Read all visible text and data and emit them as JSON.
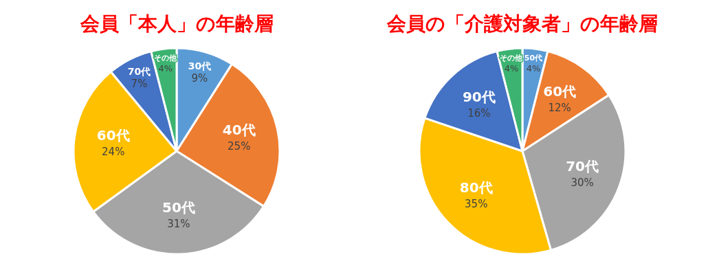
{
  "chart_data": [
    {
      "type": "pie",
      "title": "会員「本人」の年齢層",
      "categories": [
        "30代",
        "40代",
        "50代",
        "60代",
        "70代",
        "その他"
      ],
      "values": [
        9,
        25,
        31,
        24,
        7,
        4
      ],
      "value_labels": [
        "9%",
        "25%",
        "31%",
        "24%",
        "7%",
        "4%"
      ],
      "colors": [
        "#5b9bd5",
        "#ed7d31",
        "#a5a5a5",
        "#ffc000",
        "#4472c4",
        "#3cb371"
      ],
      "legend": false
    },
    {
      "type": "pie",
      "title": "会員の「介護対象者」の年齢層",
      "categories": [
        "50代",
        "60代",
        "70代",
        "80代",
        "90代",
        "その他"
      ],
      "values": [
        4,
        12,
        30,
        35,
        16,
        4
      ],
      "value_labels": [
        "4%",
        "12%",
        "30%",
        "35%",
        "16%",
        "4%"
      ],
      "colors": [
        "#5b9bd5",
        "#ed7d31",
        "#a5a5a5",
        "#ffc000",
        "#4472c4",
        "#3cb371"
      ],
      "legend": false
    }
  ]
}
